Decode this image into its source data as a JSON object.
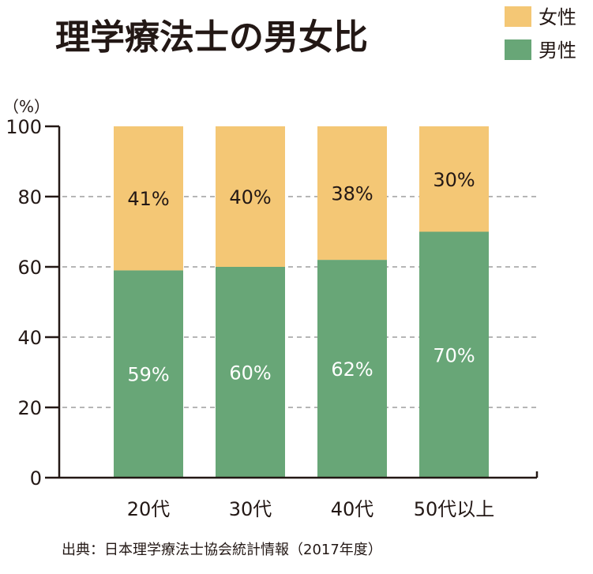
{
  "title": "理学療法士の男女比",
  "legend": [
    {
      "label": "女性",
      "color": "#f4c775"
    },
    {
      "label": "男性",
      "color": "#68a677"
    }
  ],
  "unit": "（%）",
  "source": "出典：日本理学療法士協会統計情報（2017年度）",
  "chart_data": {
    "type": "bar",
    "stacked": true,
    "percent": true,
    "title": "理学療法士の男女比",
    "categories": [
      "20代",
      "30代",
      "40代",
      "50代以上"
    ],
    "series": [
      {
        "name": "男性",
        "values": [
          59,
          60,
          62,
          70
        ],
        "labels": [
          "59%",
          "60%",
          "62%",
          "70%"
        ],
        "color": "#68a677"
      },
      {
        "name": "女性",
        "values": [
          41,
          40,
          38,
          30
        ],
        "labels": [
          "41%",
          "40%",
          "38%",
          "30%"
        ],
        "color": "#f4c775"
      }
    ],
    "ylabel": "（%）",
    "ylim": [
      0,
      100
    ],
    "yticks": [
      0,
      20,
      40,
      60,
      80,
      100
    ],
    "ytick_labels": [
      "0",
      "20",
      "40",
      "60",
      "80",
      "100"
    ],
    "grid": "dashed horizontal",
    "legend_position": "top-right"
  }
}
